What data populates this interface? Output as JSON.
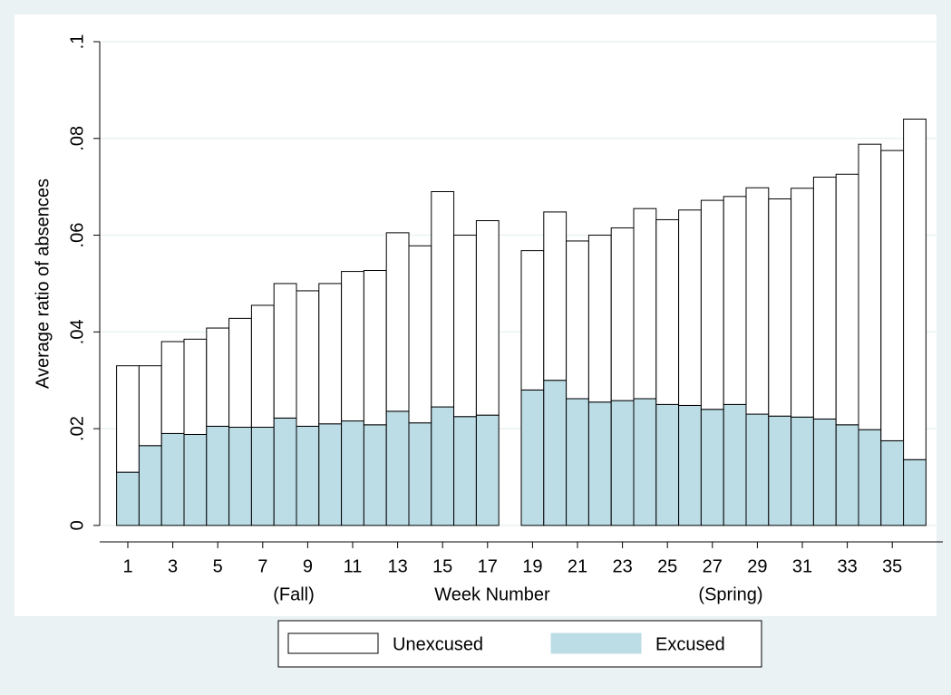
{
  "chart_data": {
    "type": "bar",
    "stacked": true,
    "y_label": "Average ratio of absences",
    "x_label": "Week Number",
    "annotations": [
      "(Fall)",
      "(Spring)"
    ],
    "x": [
      1,
      2,
      3,
      4,
      5,
      6,
      7,
      8,
      9,
      10,
      11,
      12,
      13,
      14,
      15,
      16,
      17,
      19,
      20,
      21,
      22,
      23,
      24,
      25,
      26,
      27,
      28,
      29,
      30,
      31,
      32,
      33,
      34,
      35,
      36
    ],
    "series": [
      {
        "name": "Unexcused",
        "color": "#ffffff",
        "values": [
          0.022,
          0.0165,
          0.019,
          0.0197,
          0.0203,
          0.0225,
          0.0252,
          0.0278,
          0.028,
          0.029,
          0.0309,
          0.0319,
          0.0369,
          0.0366,
          0.0445,
          0.0375,
          0.0402,
          0.0288,
          0.0348,
          0.0326,
          0.0345,
          0.0357,
          0.0393,
          0.0382,
          0.0404,
          0.0432,
          0.043,
          0.0468,
          0.0449,
          0.0473,
          0.05,
          0.0518,
          0.059,
          0.06,
          0.0704
        ]
      },
      {
        "name": "Excused",
        "color": "#bcdde6",
        "values": [
          0.011,
          0.0165,
          0.019,
          0.0188,
          0.0205,
          0.0203,
          0.0203,
          0.0222,
          0.0205,
          0.021,
          0.0216,
          0.0208,
          0.0236,
          0.0212,
          0.0245,
          0.0225,
          0.0228,
          0.028,
          0.03,
          0.0262,
          0.0255,
          0.0258,
          0.0262,
          0.025,
          0.0248,
          0.024,
          0.025,
          0.023,
          0.0226,
          0.0224,
          0.022,
          0.0208,
          0.0198,
          0.0175,
          0.0136
        ]
      }
    ],
    "xlim": [
      -0.25,
      37.25
    ],
    "xticks": [
      1,
      3,
      5,
      7,
      9,
      11,
      13,
      15,
      17,
      19,
      21,
      23,
      25,
      27,
      29,
      31,
      33,
      35
    ],
    "ylim": [
      -0.0034,
      0.1
    ],
    "yticks": [
      0,
      {
        "value": 0.02,
        "label": ".02"
      },
      {
        "value": 0.04,
        "label": ".04"
      },
      {
        "value": 0.06,
        "label": ".06"
      },
      {
        "value": 0.08,
        "label": ".08"
      },
      {
        "value": 0.1,
        "label": ".1"
      }
    ],
    "grid": true
  }
}
